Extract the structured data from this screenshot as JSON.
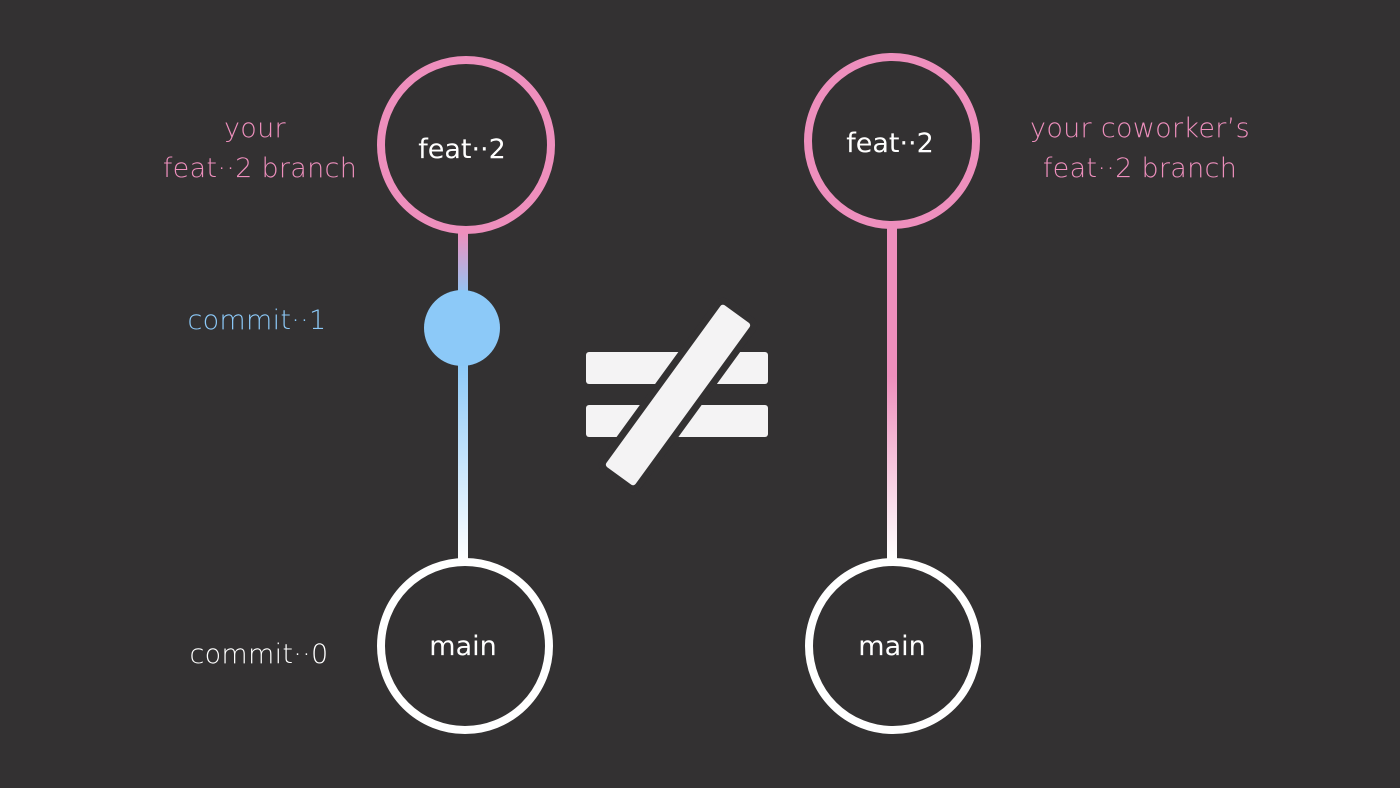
{
  "colors": {
    "background": "#333132",
    "branch_pink": "#ee8fbd",
    "commit_blue": "#8cc9f8",
    "main_white": "#ffffff",
    "symbol": "#f4f3f4"
  },
  "symbol": {
    "name": "not-equal-icon",
    "meaning": "≠"
  },
  "left_graph": {
    "branch_label_line1": "your",
    "branch_label_line2": "feat··2 branch",
    "top_node": "feat··2",
    "middle_commit_label": "commit··1",
    "bottom_commit_label": "commit··0",
    "bottom_node": "main"
  },
  "right_graph": {
    "branch_label_line1": "your coworker’s",
    "branch_label_line2": "feat··2 branch",
    "top_node": "feat··2",
    "bottom_node": "main"
  }
}
